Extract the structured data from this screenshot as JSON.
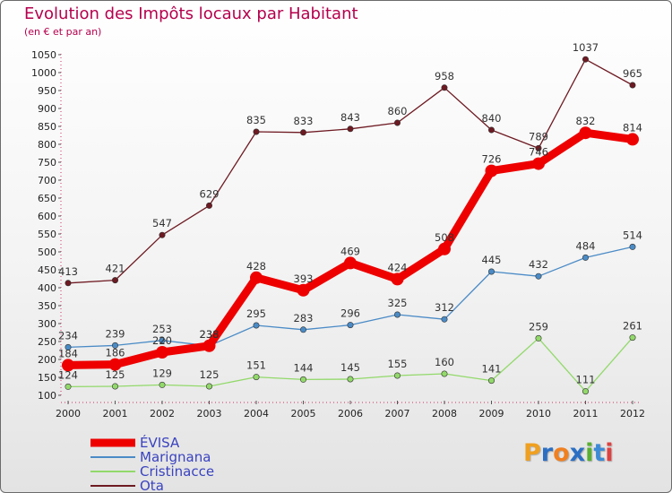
{
  "chart_data": {
    "type": "line",
    "title": "Evolution des Impôts locaux par Habitant",
    "subtitle": "(en € et par an)",
    "categories": [
      "2000",
      "2001",
      "2002",
      "2003",
      "2004",
      "2005",
      "2006",
      "2007",
      "2008",
      "2009",
      "2010",
      "2011",
      "2012"
    ],
    "yticks": [
      100,
      150,
      200,
      250,
      300,
      350,
      400,
      450,
      500,
      550,
      600,
      650,
      700,
      750,
      800,
      850,
      900,
      950,
      1000,
      1050
    ],
    "ylim": [
      100,
      1050
    ],
    "grid": false,
    "legend_position": "bottom-left",
    "series": [
      {
        "name": "Ota",
        "color": "#6e1a22",
        "values": [
          413,
          421,
          547,
          629,
          835,
          833,
          843,
          860,
          958,
          840,
          789,
          1037,
          965
        ]
      },
      {
        "name": "Marignana",
        "color": "#4a8bc6",
        "values": [
          234,
          239,
          253,
          238,
          295,
          283,
          296,
          325,
          312,
          445,
          432,
          484,
          514
        ]
      },
      {
        "name": "Cristinacce",
        "color": "#92d96a",
        "values": [
          124,
          125,
          129,
          125,
          151,
          144,
          145,
          155,
          160,
          141,
          259,
          111,
          261
        ]
      },
      {
        "name": "ÉVISA",
        "color": "#ee0000",
        "values": [
          184,
          186,
          220,
          238,
          428,
          393,
          469,
          424,
          508,
          726,
          746,
          832,
          814
        ]
      }
    ],
    "legend_order": [
      "ÉVISA",
      "Marignana",
      "Cristinacce",
      "Ota"
    ]
  },
  "logo": {
    "letters": [
      "P",
      "r",
      "o",
      "x",
      "i",
      "t",
      "i"
    ],
    "colors": [
      "#f0a020",
      "#2b6fc4",
      "#f08020",
      "#2b6fc4",
      "#58b030",
      "#3d8ad6",
      "#e04040"
    ]
  }
}
